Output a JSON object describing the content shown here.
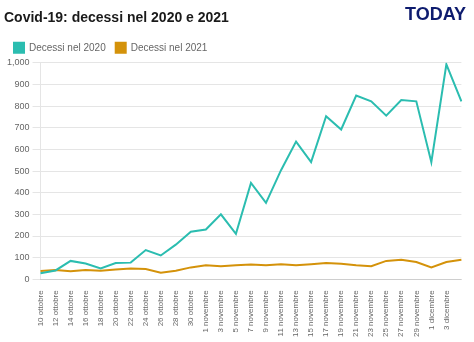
{
  "chart_data": {
    "type": "line",
    "title": "Covid-19: decessi nel 2020 e 2021",
    "annotations": [
      "TODAY"
    ],
    "categories": [
      "10 ottobre",
      "12 ottobre",
      "14 ottobre",
      "16 ottobre",
      "18 ottobre",
      "20 ottobre",
      "22 ottobre",
      "24 ottobre",
      "26 ottobre",
      "28 ottobre",
      "30 ottobre",
      "1 novembre",
      "3 novembre",
      "5 novembre",
      "7 novembre",
      "9 novembre",
      "11 novembre",
      "13 novembre",
      "15 novembre",
      "17 novembre",
      "19 novembre",
      "21 novembre",
      "23 novembre",
      "25 novembre",
      "27 novembre",
      "29 novembre",
      "1 dicembre",
      "3 dicembre",
      null
    ],
    "series": [
      {
        "name": "Decessi nel 2020",
        "color": "#2bbdb0",
        "values": [
          28,
          41,
          85,
          73,
          50,
          75,
          77,
          135,
          110,
          160,
          220,
          230,
          300,
          210,
          445,
          353,
          504,
          636,
          541,
          753,
          692,
          849,
          822,
          756,
          828,
          822,
          541,
          993,
          822
        ]
      },
      {
        "name": "Decessi nel 2021",
        "color": "#d4920a",
        "values": [
          38,
          43,
          37,
          43,
          40,
          45,
          50,
          48,
          30,
          40,
          55,
          65,
          60,
          65,
          68,
          65,
          70,
          65,
          70,
          75,
          72,
          65,
          60,
          85,
          90,
          80,
          55,
          80,
          90
        ]
      }
    ],
    "ylim": [
      0,
      1000
    ],
    "yticks": [
      0,
      100,
      200,
      300,
      400,
      500,
      600,
      700,
      800,
      900,
      1000
    ],
    "grid": true,
    "legend": "upper left"
  }
}
